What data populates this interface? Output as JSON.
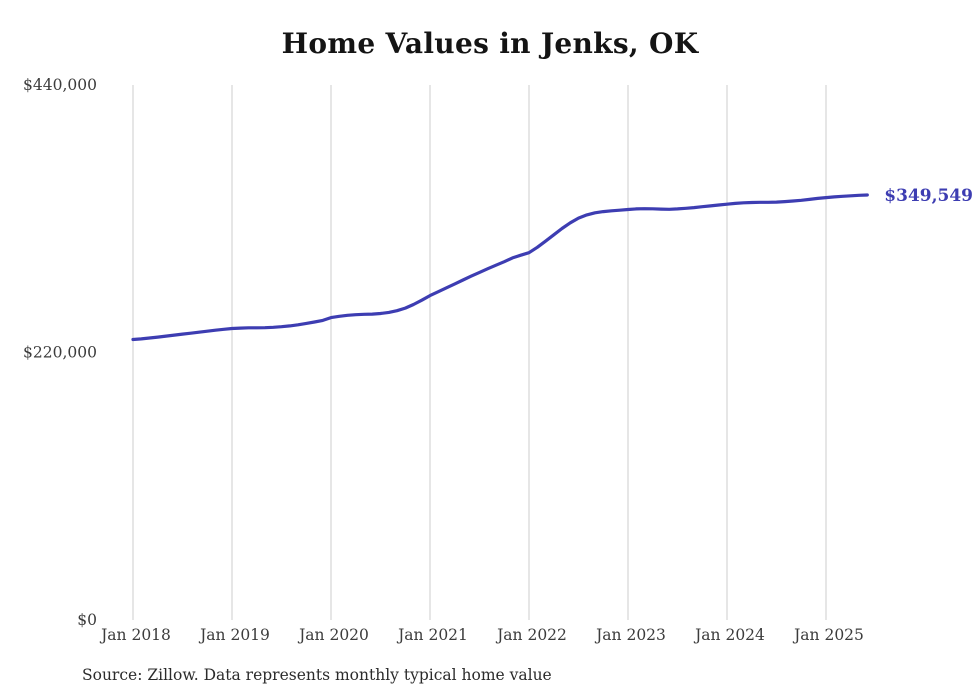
{
  "page": {
    "title": "Home Values in Jenks, OK",
    "source_note": "Source: Zillow. Data represents monthly typical home value"
  },
  "chart_data": {
    "type": "line",
    "title": "Home Values in Jenks, OK",
    "series_name": "Monthly typical home value",
    "unit": "USD",
    "x_start": "Jan 2018",
    "x_end": "Jun 2025",
    "x_interval": "monthly",
    "x_tick_labels": [
      "Jan 2018",
      "Jan 2019",
      "Jan 2020",
      "Jan 2021",
      "Jan 2022",
      "Jan 2023",
      "Jan 2024",
      "Jan 2025"
    ],
    "y_ticks": [
      0,
      220000,
      440000
    ],
    "y_tick_labels": [
      "$0",
      "$220,000",
      "$440,000"
    ],
    "ylim": [
      0,
      440000
    ],
    "grid": "vertical-only",
    "end_label": "$349,549",
    "final_value": 349549,
    "line_color": "#3d3db2",
    "grid_color": "#cccccc",
    "axis_text_color": "#3c3c3c",
    "values": [
      230700,
      231200,
      231900,
      232700,
      233500,
      234300,
      235100,
      235900,
      236700,
      237500,
      238300,
      239100,
      239700,
      240100,
      240300,
      240300,
      240400,
      240700,
      241200,
      241900,
      242800,
      243900,
      245100,
      246400,
      248700,
      249800,
      250600,
      251100,
      251400,
      251600,
      252100,
      253000,
      254400,
      256500,
      259500,
      263000,
      266800,
      270000,
      273200,
      276400,
      279600,
      282800,
      285900,
      288900,
      291800,
      294700,
      297800,
      300000,
      302100,
      306500,
      311500,
      316800,
      322000,
      326700,
      330500,
      333200,
      334900,
      335900,
      336500,
      337000,
      337600,
      338100,
      338300,
      338200,
      337900,
      337800,
      338100,
      338600,
      339200,
      339900,
      340600,
      341300,
      342000,
      342600,
      343100,
      343400,
      343500,
      343500,
      343700,
      344100,
      344600,
      345200,
      345900,
      346700,
      347400,
      348000,
      348500,
      348900,
      349300,
      349549
    ]
  }
}
